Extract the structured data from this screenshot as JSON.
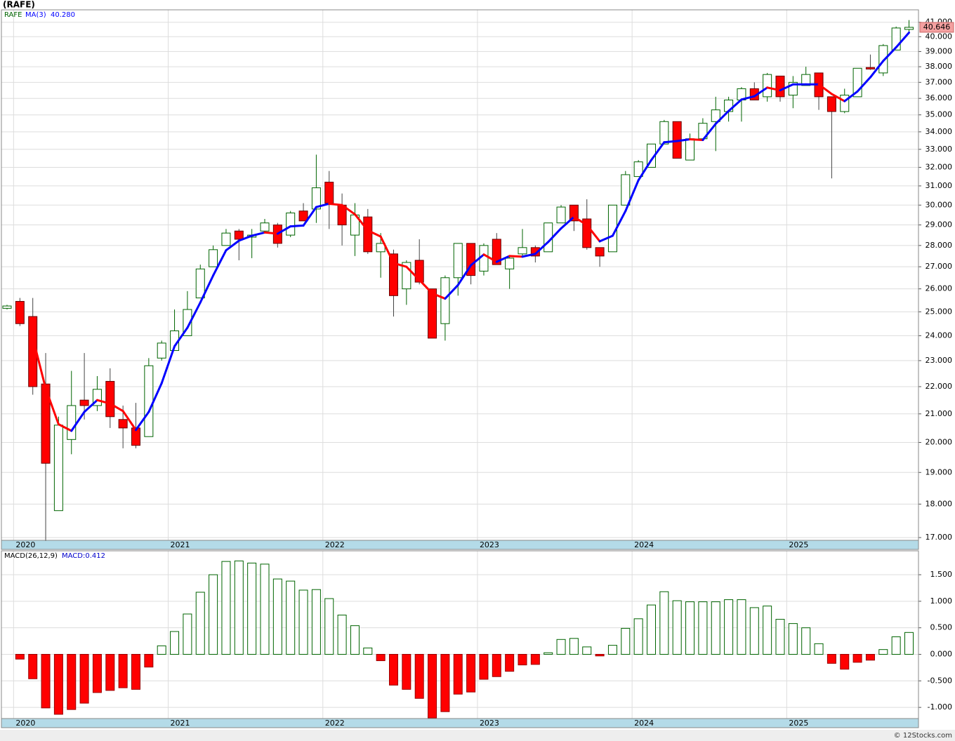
{
  "title": "(RAFE)",
  "footer": "© 12Stocks.com",
  "chart_data": [
    {
      "type": "candlestick",
      "categories": [
        null,
        "2020",
        null,
        null,
        null,
        null,
        null,
        null,
        null,
        null,
        null,
        null,
        null,
        "2021",
        null,
        null,
        null,
        null,
        null,
        null,
        null,
        null,
        null,
        null,
        null,
        "2022",
        null,
        null,
        null,
        null,
        null,
        null,
        null,
        null,
        null,
        null,
        null,
        "2023",
        null,
        null,
        null,
        null,
        null,
        null,
        null,
        null,
        null,
        null,
        null,
        "2024",
        null,
        null,
        null,
        null,
        null,
        null,
        null,
        null,
        null,
        null,
        null,
        "2025",
        null,
        null,
        null,
        null,
        null,
        null,
        null,
        null,
        null
      ],
      "series": [
        {
          "name": "RAFE",
          "color": "#006400",
          "up_color": "#ffffff",
          "down_color": "#ff0000",
          "open": [
            25.15,
            25.45,
            24.8,
            22.1,
            17.8,
            20.1,
            21.5,
            21.3,
            22.2,
            20.8,
            20.5,
            20.2,
            23.1,
            23.4,
            24.0,
            25.6,
            27.0,
            28.0,
            28.7,
            28.4,
            28.7,
            29.0,
            28.5,
            29.7,
            29.8,
            31.2,
            30.0,
            28.5,
            29.4,
            27.7,
            27.6,
            26.0,
            27.3,
            26.0,
            24.5,
            26.5,
            28.1,
            26.8,
            28.3,
            26.9,
            27.6,
            27.9,
            27.7,
            29.1,
            30.0,
            29.3,
            27.9,
            27.7,
            30.0,
            31.5,
            32.0,
            33.3,
            34.6,
            32.4,
            33.6,
            34.6,
            35.2,
            35.9,
            36.6,
            36.1,
            37.4,
            36.2,
            36.8,
            37.6,
            36.1,
            35.2,
            36.1,
            37.95,
            37.6,
            39.1,
            40.5
          ],
          "high": [
            25.3,
            25.6,
            25.6,
            23.3,
            20.9,
            22.6,
            23.3,
            22.4,
            22.7,
            21.3,
            21.4,
            23.1,
            23.8,
            25.1,
            25.9,
            27.1,
            28.0,
            28.8,
            28.8,
            28.8,
            29.3,
            29.1,
            29.7,
            30.1,
            32.7,
            31.8,
            30.6,
            30.1,
            29.8,
            28.6,
            27.8,
            27.3,
            28.3,
            26.0,
            26.6,
            28.1,
            28.1,
            28.1,
            28.6,
            27.5,
            28.8,
            28.0,
            29.1,
            30.0,
            30.0,
            30.3,
            27.9,
            30.0,
            31.8,
            32.4,
            33.3,
            34.7,
            34.6,
            33.9,
            34.8,
            36.1,
            36.1,
            36.7,
            37.0,
            37.6,
            37.4,
            37.4,
            38.0,
            37.6,
            36.1,
            36.6,
            37.9,
            38.8,
            39.5,
            40.7,
            41.15
          ],
          "low": [
            25.1,
            24.4,
            21.7,
            16.9,
            17.8,
            19.6,
            20.8,
            21.1,
            20.5,
            19.8,
            19.8,
            20.2,
            23.0,
            23.4,
            24.0,
            25.6,
            27.0,
            28.0,
            27.3,
            27.4,
            28.6,
            27.9,
            28.4,
            29.2,
            29.1,
            28.8,
            28.0,
            27.5,
            27.6,
            26.5,
            24.8,
            25.3,
            26.2,
            23.9,
            23.8,
            25.7,
            26.2,
            26.6,
            27.1,
            26.0,
            27.5,
            27.2,
            27.7,
            29.1,
            28.7,
            27.8,
            27.0,
            27.7,
            30.0,
            31.5,
            32.0,
            33.3,
            32.5,
            32.4,
            33.6,
            32.9,
            34.6,
            34.6,
            35.9,
            35.8,
            35.8,
            35.4,
            36.8,
            35.3,
            31.4,
            35.1,
            36.1,
            37.8,
            37.4,
            39.1,
            40.3
          ],
          "close": [
            25.25,
            24.5,
            22.0,
            19.3,
            20.6,
            21.3,
            21.3,
            21.9,
            20.9,
            20.5,
            19.9,
            22.8,
            23.7,
            24.2,
            25.1,
            26.9,
            27.8,
            28.6,
            28.3,
            28.5,
            29.1,
            28.1,
            29.6,
            29.2,
            30.9,
            30.1,
            29.0,
            29.5,
            27.7,
            28.1,
            25.7,
            27.2,
            26.3,
            23.9,
            26.5,
            28.1,
            26.6,
            28.0,
            27.1,
            27.4,
            27.9,
            27.5,
            29.1,
            29.9,
            29.2,
            27.9,
            27.5,
            30.0,
            31.6,
            32.3,
            33.3,
            34.6,
            32.5,
            33.6,
            34.5,
            35.3,
            35.9,
            36.6,
            35.9,
            37.5,
            36.1,
            37.0,
            37.5,
            36.1,
            35.2,
            36.2,
            37.9,
            37.85,
            39.4,
            40.6,
            40.646
          ],
          "last_tag_color": "#f4a0a0"
        },
        {
          "name": "MA(3)",
          "type": "line",
          "color": "#0000ff",
          "down_color": "#ff0000",
          "value_label": "40.280",
          "values": [
            null,
            null,
            23.92,
            21.93,
            20.63,
            20.4,
            21.07,
            21.5,
            21.37,
            21.1,
            20.43,
            21.07,
            22.13,
            23.57,
            24.33,
            25.4,
            26.6,
            27.77,
            28.23,
            28.47,
            28.63,
            28.57,
            28.93,
            28.97,
            29.9,
            30.07,
            30.0,
            29.53,
            28.73,
            28.43,
            27.17,
            27.0,
            26.4,
            25.8,
            25.57,
            26.17,
            27.07,
            27.57,
            27.23,
            27.5,
            27.47,
            27.6,
            28.17,
            28.83,
            29.4,
            29.0,
            28.2,
            28.47,
            29.7,
            31.3,
            32.4,
            33.4,
            33.47,
            33.57,
            33.53,
            34.47,
            35.23,
            35.93,
            36.13,
            36.67,
            36.5,
            36.87,
            36.87,
            36.87,
            36.27,
            35.83,
            36.43,
            37.32,
            38.38,
            39.28,
            40.28
          ]
        }
      ],
      "ylim": [
        16.92,
        41.88
      ],
      "log_scale": true,
      "grid": true,
      "yticks": [
        {
          "value": 17,
          "label": "17.000"
        },
        {
          "value": 18,
          "label": "18.000"
        },
        {
          "value": 19,
          "label": "19.000"
        },
        {
          "value": 20,
          "label": "20.000"
        },
        {
          "value": 21,
          "label": "21.000"
        },
        {
          "value": 22,
          "label": "22.000"
        },
        {
          "value": 23,
          "label": "23.000"
        },
        {
          "value": 24,
          "label": "24.000"
        },
        {
          "value": 25,
          "label": "25.000"
        },
        {
          "value": 26,
          "label": "26.000"
        },
        {
          "value": 27,
          "label": "27.000"
        },
        {
          "value": 28,
          "label": "28.000"
        },
        {
          "value": 29,
          "label": "29.000"
        },
        {
          "value": 30,
          "label": "30.000"
        },
        {
          "value": 31,
          "label": "31.000"
        },
        {
          "value": 32,
          "label": "32.000"
        },
        {
          "value": 33,
          "label": "33.000"
        },
        {
          "value": 34,
          "label": "34.000"
        },
        {
          "value": 35,
          "label": "35.000"
        },
        {
          "value": 36,
          "label": "36.000"
        },
        {
          "value": 37,
          "label": "37.000"
        },
        {
          "value": 38,
          "label": "38.000"
        },
        {
          "value": 39,
          "label": "39.000"
        },
        {
          "value": 40,
          "label": "40.000"
        },
        {
          "value": 41,
          "label": "41.000"
        }
      ]
    },
    {
      "type": "bar",
      "title": "MACD(26,12,9)",
      "categories": [
        "2020",
        null,
        null,
        null,
        null,
        null,
        null,
        null,
        null,
        null,
        null,
        null,
        "2021",
        null,
        null,
        null,
        null,
        null,
        null,
        null,
        null,
        null,
        null,
        null,
        "2022",
        null,
        null,
        null,
        null,
        null,
        null,
        null,
        null,
        null,
        null,
        null,
        "2023",
        null,
        null,
        null,
        null,
        null,
        null,
        null,
        null,
        null,
        null,
        null,
        "2024",
        null,
        null,
        null,
        null,
        null,
        null,
        null,
        null,
        null,
        null,
        null,
        "2025",
        null,
        null,
        null,
        null,
        null,
        null,
        null,
        null,
        null
      ],
      "series": [
        {
          "name": "MACD",
          "color": "#006400",
          "negative_color": "#ff0000",
          "value_label": "MACD:0.412",
          "values": [
            -0.09,
            -0.46,
            -1.01,
            -1.13,
            -1.04,
            -0.92,
            -0.72,
            -0.68,
            -0.63,
            -0.66,
            -0.24,
            0.16,
            0.43,
            0.76,
            1.17,
            1.5,
            1.75,
            1.76,
            1.72,
            1.7,
            1.42,
            1.38,
            1.21,
            1.22,
            1.05,
            0.74,
            0.54,
            0.12,
            -0.12,
            -0.58,
            -0.66,
            -0.83,
            -1.2,
            -1.08,
            -0.75,
            -0.71,
            -0.47,
            -0.42,
            -0.32,
            -0.2,
            -0.19,
            0.03,
            0.28,
            0.3,
            0.14,
            -0.03,
            0.17,
            0.49,
            0.67,
            0.93,
            1.18,
            1.01,
            0.99,
            0.99,
            0.99,
            1.03,
            1.03,
            0.88,
            0.91,
            0.66,
            0.58,
            0.5,
            0.2,
            -0.17,
            -0.28,
            -0.15,
            -0.11,
            0.09,
            0.33,
            0.412
          ]
        }
      ],
      "ylim": [
        -1.21,
        1.95
      ],
      "grid": true,
      "yticks": [
        {
          "value": -1,
          "label": "-1.000"
        },
        {
          "value": -0.5,
          "label": "-0.500"
        },
        {
          "value": 0,
          "label": "0.000"
        },
        {
          "value": 0.5,
          "label": "0.500"
        },
        {
          "value": 1,
          "label": "1.000"
        },
        {
          "value": 1.5,
          "label": "1.500"
        }
      ]
    }
  ]
}
